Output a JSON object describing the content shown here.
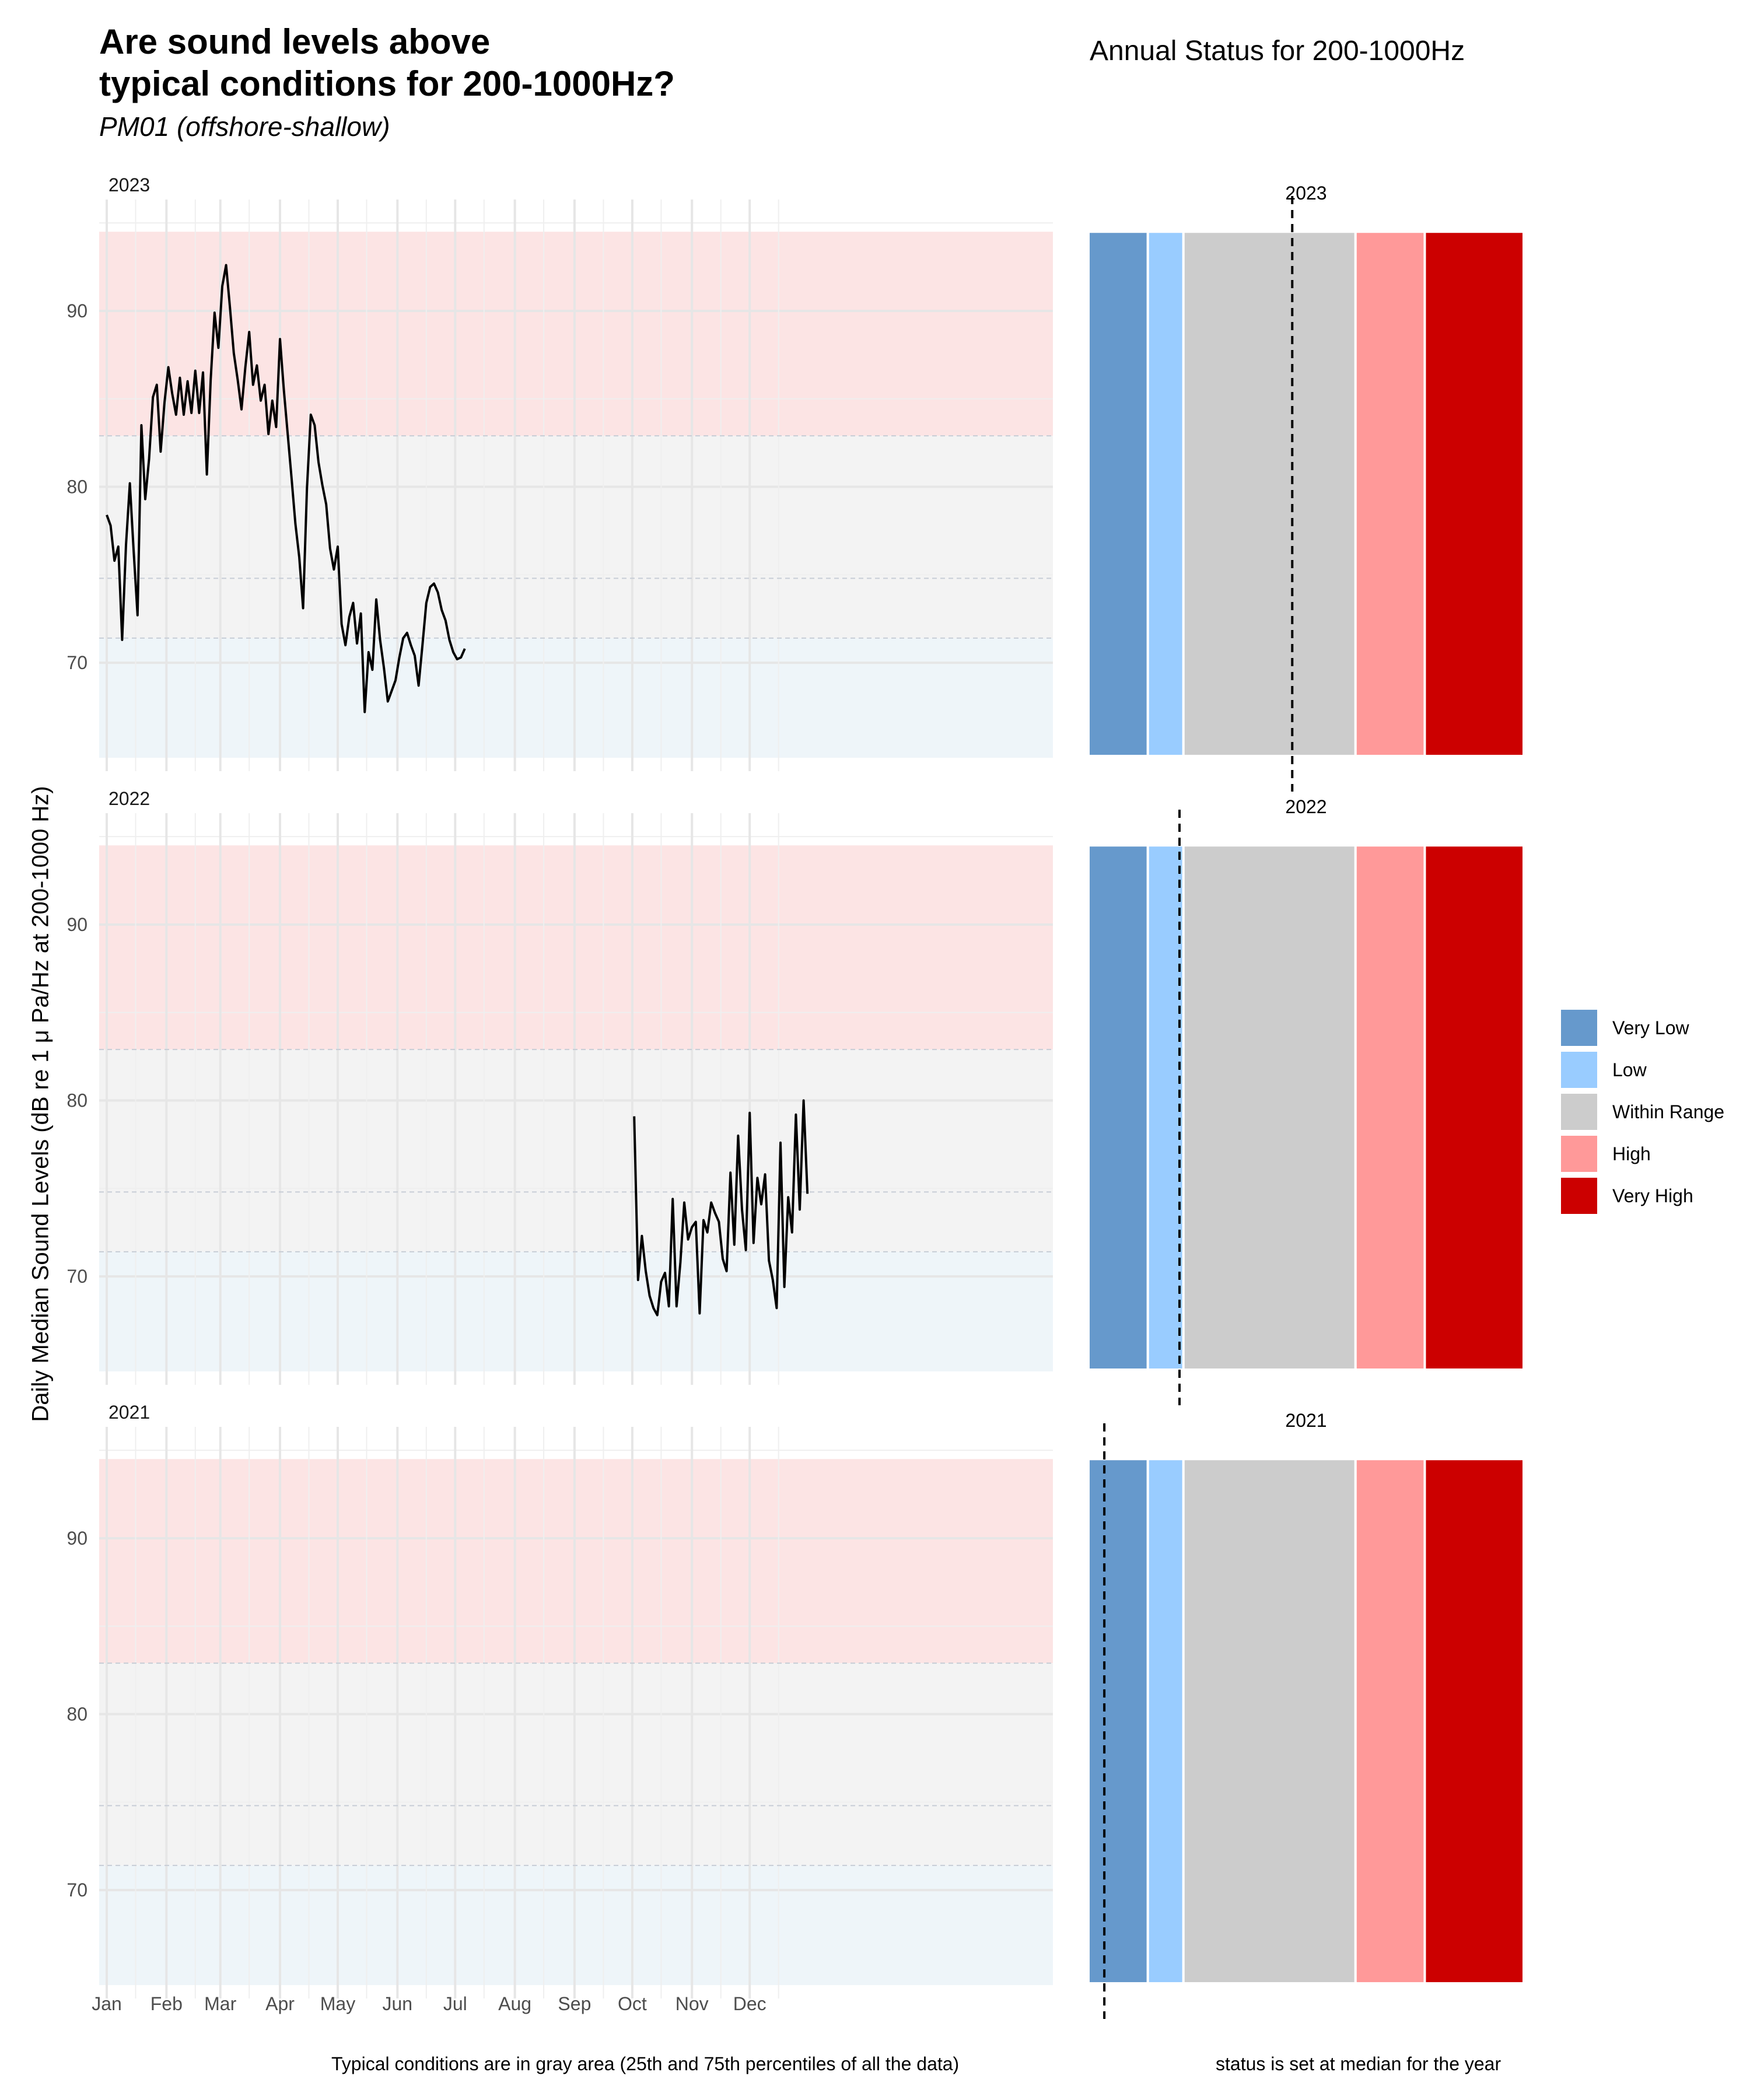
{
  "title_line1": "Are sound levels above",
  "title_line2": "typical conditions for 200-1000Hz?",
  "subtitle": "PM01 (offshore-shallow)",
  "right_title": "Annual Status for 200-1000Hz",
  "ylabel": "Daily Median Sound Levels (dB re 1 μ Pa/Hz at 200-1000 Hz)",
  "caption_left": "Typical conditions are in gray area (25th and 75th percentiles of all the data)",
  "caption_right": "status is set at median for the year",
  "colors": {
    "very_low": "#6699cc",
    "low": "#99ccff",
    "within": "#cccccc",
    "high": "#ff9999",
    "very_high": "#cc0000",
    "band_red": "#fce4e4",
    "band_gray": "#f3f3f3",
    "band_blue": "#eef5f9",
    "line": "#000000"
  },
  "legend": [
    {
      "label": "Very Low",
      "color": "#6699cc"
    },
    {
      "label": "Low",
      "color": "#99ccff"
    },
    {
      "label": "Within Range",
      "color": "#cccccc"
    },
    {
      "label": "High",
      "color": "#ff9999"
    },
    {
      "label": "Very High",
      "color": "#cc0000"
    }
  ],
  "chart_data": [
    {
      "type": "line",
      "description": "Daily median sound levels per year, faceted by year (2023, 2022, 2021)",
      "x_ticks": [
        "Jan",
        "Feb",
        "Mar",
        "Apr",
        "May",
        "Jun",
        "Jul",
        "Aug",
        "Sep",
        "Oct",
        "Nov",
        "Dec"
      ],
      "y_ticks": [
        70,
        80,
        90
      ],
      "ylim": [
        64.5,
        96
      ],
      "bands": {
        "very_low_max": 64.6,
        "low_max": 71.4,
        "median": 74.8,
        "high_min": 82.9,
        "very_high_max": 94.5
      },
      "facets": [
        {
          "year": "2023",
          "series": [
            {
              "x": [
                1,
                3,
                5,
                7,
                9,
                11,
                13,
                15,
                17,
                19,
                21,
                23,
                25,
                27,
                29,
                31,
                33,
                35,
                37,
                39,
                41,
                43,
                45,
                47,
                49,
                51,
                53,
                55,
                57,
                59,
                61,
                63,
                65,
                67,
                69,
                71,
                73,
                75,
                77,
                79,
                81,
                83,
                85,
                87,
                89,
                91,
                93,
                95,
                97,
                99,
                101,
                103,
                105,
                107,
                109,
                111,
                113,
                115,
                117,
                119,
                121,
                123,
                125,
                127,
                129,
                131,
                133,
                135,
                137,
                139,
                141,
                143,
                145,
                147,
                149,
                151,
                153,
                155,
                157,
                159,
                161,
                163,
                165,
                167,
                169,
                171,
                173,
                175,
                177,
                179,
                181,
                183,
                185,
                187
              ],
              "y": [
                78.4,
                77.8,
                75.8,
                76.6,
                71.3,
                76.7,
                80.2,
                76.3,
                72.7,
                83.5,
                79.3,
                81.6,
                85.1,
                85.8,
                82.0,
                84.8,
                86.8,
                85.3,
                84.1,
                86.2,
                84.1,
                86.0,
                84.2,
                86.6,
                84.2,
                86.5,
                80.7,
                86.1,
                89.9,
                87.9,
                91.4,
                92.6,
                90.2,
                87.6,
                86.1,
                84.4,
                86.8,
                88.8,
                85.8,
                86.9,
                84.9,
                85.8,
                83.0,
                84.9,
                83.4,
                88.4,
                85.5,
                83.0,
                80.5,
                77.9,
                76.0,
                73.1,
                79.9,
                84.1,
                83.5,
                81.4,
                80.1,
                79.0,
                76.5,
                75.3,
                76.6,
                72.2,
                71.0,
                72.6,
                73.4,
                71.1,
                72.8,
                67.2,
                70.6,
                69.6,
                73.6,
                71.3,
                69.7,
                67.8,
                68.4,
                69.0,
                70.3,
                71.4,
                71.7,
                71.0,
                70.4,
                68.7,
                71.0,
                73.4,
                74.3,
                74.5,
                74.0,
                73.0,
                72.4,
                71.3,
                70.6,
                70.2,
                70.3,
                70.8
              ]
            }
          ],
          "status_median": 74.8
        },
        {
          "year": "2022",
          "series": [
            {
              "x": [
                275,
                277,
                279,
                281,
                283,
                285,
                287,
                289,
                291,
                293,
                295,
                297,
                299,
                301,
                303,
                305,
                307,
                309,
                311,
                313,
                315,
                317,
                319,
                321,
                323,
                325,
                327,
                329,
                331,
                333,
                335,
                337,
                339,
                341,
                343,
                345,
                347,
                349,
                351,
                353,
                355,
                357,
                359,
                361,
                363,
                365
              ],
              "y": [
                79.1,
                69.8,
                72.3,
                70.3,
                68.9,
                68.2,
                67.8,
                69.7,
                70.2,
                68.3,
                74.4,
                68.3,
                70.8,
                74.2,
                72.1,
                72.8,
                73.1,
                67.9,
                73.2,
                72.5,
                74.2,
                73.6,
                73.1,
                71.0,
                70.3,
                75.9,
                71.8,
                78.0,
                73.8,
                71.5,
                79.3,
                71.9,
                75.6,
                74.1,
                75.8,
                70.9,
                69.8,
                68.2,
                77.6,
                69.4,
                74.5,
                72.5,
                79.2,
                73.8,
                80.0,
                74.7
              ]
            }
          ],
          "status_median": 69.1
        },
        {
          "year": "2021",
          "series": [],
          "status_median": 65.3
        }
      ]
    },
    {
      "type": "bar",
      "description": "Annual status bars: stacked categories with dashed line at the annual median",
      "categories": [
        "Very Low",
        "Low",
        "Within Range",
        "High",
        "Very High"
      ],
      "panels": [
        "2023",
        "2022",
        "2021"
      ]
    }
  ]
}
